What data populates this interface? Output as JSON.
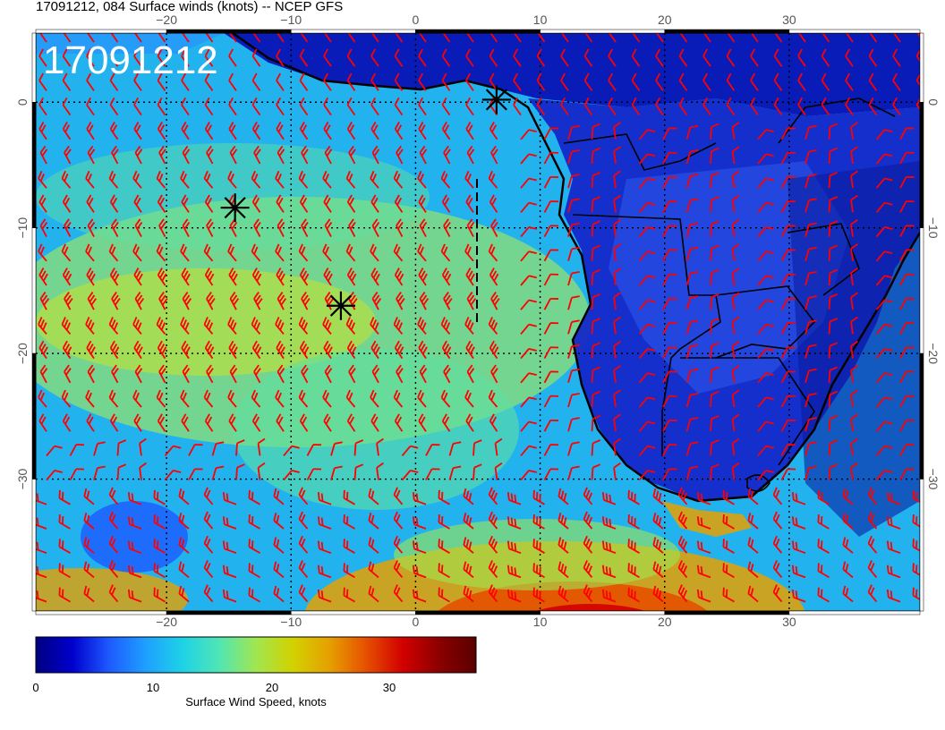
{
  "title": "17091212, 084 Surface winds (knots) -- NCEP GFS",
  "stamp": "17091212",
  "colorbar": {
    "label": "Surface Wind Speed, knots",
    "ticks": [
      "0",
      "10",
      "20",
      "30"
    ],
    "range": [
      0,
      37
    ],
    "colors": [
      "#000080",
      "#0000cd",
      "#1e5aff",
      "#1ea0ff",
      "#1ed2e6",
      "#50e6b4",
      "#a0e650",
      "#d2d200",
      "#e6a000",
      "#e65000",
      "#d20000",
      "#8b0000",
      "#5a0000"
    ]
  },
  "map": {
    "lon_range": [
      -30.5,
      40.5
    ],
    "lat_range": [
      -40.5,
      5.5
    ],
    "lon_ticks": [
      "−20",
      "−10",
      "0",
      "10",
      "20",
      "30"
    ],
    "lat_ticks": [
      "0",
      "−10",
      "−20",
      "−30"
    ],
    "grid_style": "dotted black",
    "wind_barb_color": "#ff0000",
    "markers": [
      {
        "name": "storm-marker-1",
        "lon": 6.5,
        "lat": 0.2
      },
      {
        "name": "storm-marker-2",
        "lon": -14.5,
        "lat": -8.4
      },
      {
        "name": "storm-marker-3",
        "lon": -6.0,
        "lat": -16.2
      }
    ]
  }
}
